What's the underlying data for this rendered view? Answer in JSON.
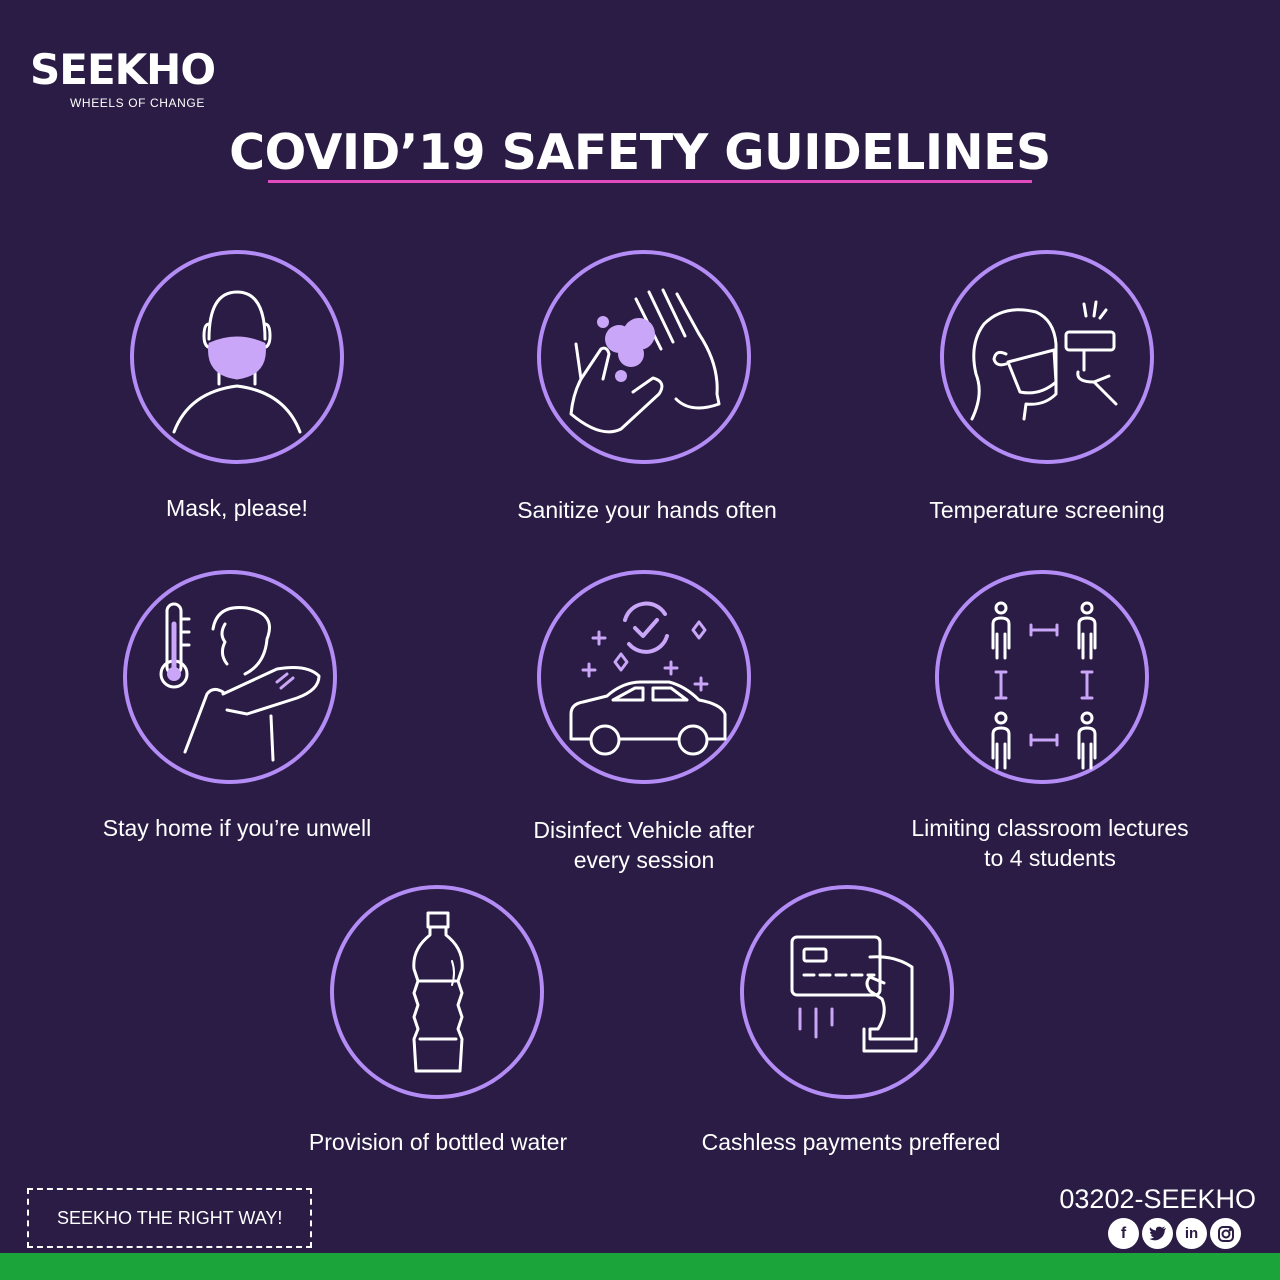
{
  "brand": {
    "name": "SEEKHO",
    "tagline": "WHEELS OF CHANGE"
  },
  "title": "COVID’19 SAFETY GUIDELINES",
  "colors": {
    "background": "#2a1c44",
    "accent_circle": "#b48cf6",
    "title_underline": "#e24bbf",
    "footer_bar": "#1aa43a"
  },
  "guidelines": [
    {
      "icon": "face-mask-icon",
      "caption_lines": [
        "Mask, please!"
      ]
    },
    {
      "icon": "hand-sanitize-icon",
      "caption_lines": [
        "Sanitize your hands often"
      ]
    },
    {
      "icon": "temperature-screening-icon",
      "caption_lines": [
        "Temperature screening"
      ]
    },
    {
      "icon": "sick-cough-icon",
      "caption_lines": [
        "Stay home if you’re unwell"
      ]
    },
    {
      "icon": "disinfect-car-icon",
      "caption_lines": [
        "Disinfect Vehicle after",
        "every session"
      ]
    },
    {
      "icon": "social-distance-icon",
      "caption_lines": [
        "Limiting classroom lectures",
        "to 4 students"
      ]
    },
    {
      "icon": "water-bottle-icon",
      "caption_lines": [
        "Provision of bottled water"
      ]
    },
    {
      "icon": "card-payment-icon",
      "caption_lines": [
        "Cashless payments preffered"
      ]
    }
  ],
  "footer": {
    "slogan": "SEEKHO THE RIGHT WAY!",
    "phone": "03202-SEEKHO",
    "social_icons": [
      "facebook-icon",
      "twitter-icon",
      "linkedin-icon",
      "instagram-icon"
    ]
  }
}
